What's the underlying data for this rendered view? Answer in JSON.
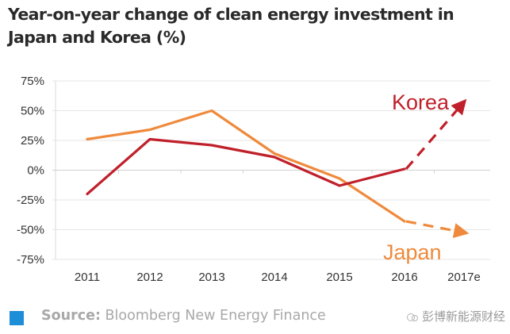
{
  "title": "Year-on-year change of clean energy investment in Japan and Korea (%)",
  "footer": {
    "source_label": "Source:",
    "source_text": "Bloomberg New Energy Finance",
    "watermark": "彭博新能源财经",
    "source_color": "#1e8fd6"
  },
  "chart_data": {
    "type": "line",
    "title": "Year-on-year change of clean energy investment in Japan and Korea (%)",
    "xlabel": "",
    "ylabel": "",
    "categories": [
      "2011",
      "2012",
      "2013",
      "2014",
      "2015",
      "2016",
      "2017e"
    ],
    "ylim": [
      -75,
      75
    ],
    "yticks": [
      75,
      50,
      25,
      0,
      -25,
      -50,
      -75
    ],
    "ytick_labels": [
      "75%",
      "50%",
      "25%",
      "0%",
      "-25%",
      "-50%",
      "-75%"
    ],
    "grid": true,
    "legend": "inline labels (Korea top-right, Japan bottom-right)",
    "series": [
      {
        "name": "Korea",
        "color": "#c0202a",
        "values": [
          -20,
          26,
          21,
          11,
          -13,
          1
        ],
        "forecast": {
          "from": "2016",
          "to": "2017e",
          "value": 55,
          "style": "dashed-arrow"
        }
      },
      {
        "name": "Japan",
        "color": "#ef8a3c",
        "values": [
          26,
          34,
          50,
          14,
          -7,
          -43
        ],
        "forecast": {
          "from": "2016",
          "to": "2017e",
          "value": -52,
          "style": "dashed-arrow"
        }
      }
    ]
  }
}
